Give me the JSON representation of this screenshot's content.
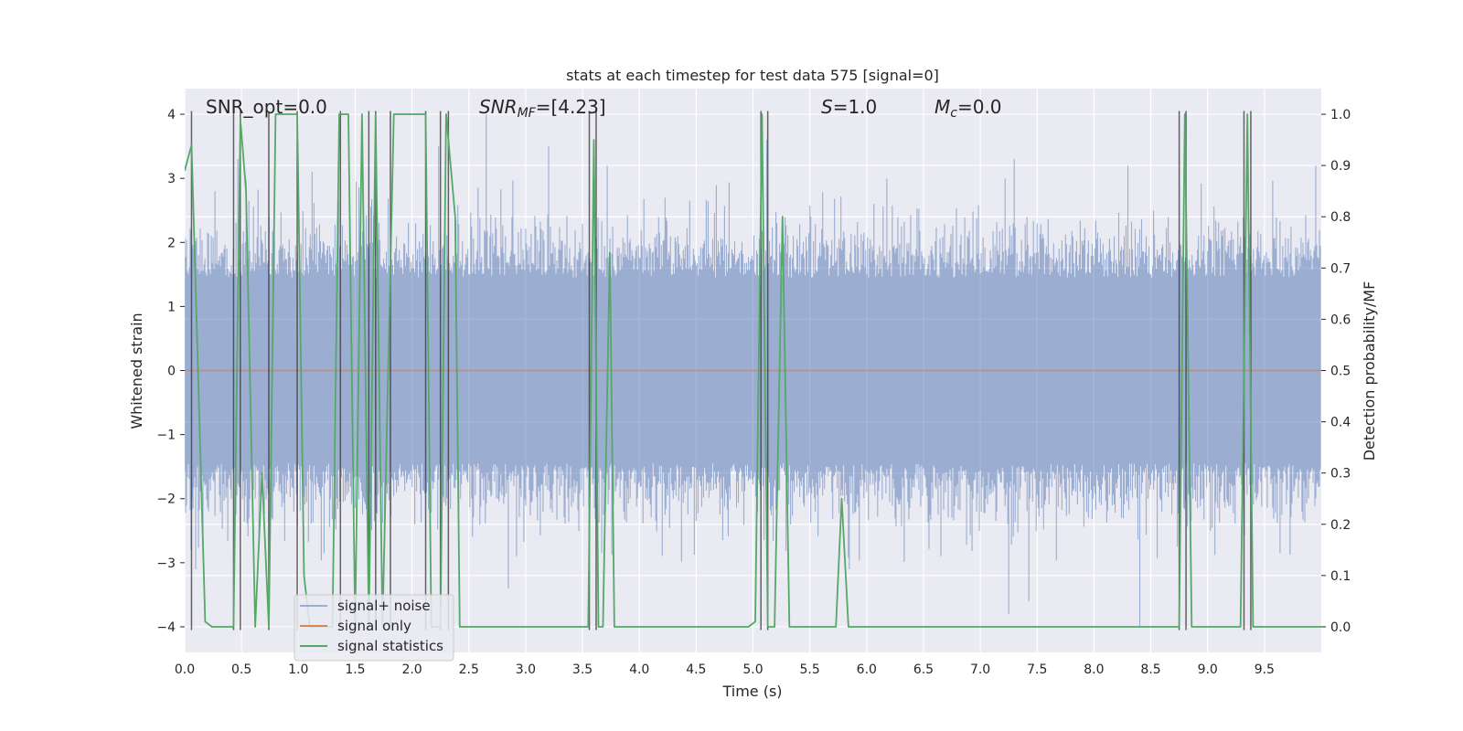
{
  "chart_data": {
    "type": "line",
    "title": "stats at each timestep for test data 575 [signal=0]",
    "xlabel": "Time (s)",
    "ylabel_left": "Whitened strain",
    "ylabel_right": "Detection probability/MF",
    "xlim": [
      0,
      10
    ],
    "ylim_left": [
      -4.4,
      4.4
    ],
    "ylim_right": [
      -0.05,
      1.05
    ],
    "x_ticks": [
      "0.0",
      "0.5",
      "1.0",
      "1.5",
      "2.0",
      "2.5",
      "3.0",
      "3.5",
      "4.0",
      "4.5",
      "5.0",
      "5.5",
      "6.0",
      "6.5",
      "7.0",
      "7.5",
      "8.0",
      "8.5",
      "9.0",
      "9.5"
    ],
    "y_left_ticks": [
      "4",
      "3",
      "2",
      "1",
      "0",
      "−1",
      "−2",
      "−3",
      "−4"
    ],
    "y_right_ticks": [
      "1.0",
      "0.9",
      "0.8",
      "0.7",
      "0.6",
      "0.5",
      "0.4",
      "0.3",
      "0.2",
      "0.1",
      "0.0"
    ],
    "grid": true,
    "annotations": {
      "snr_opt": "SNR_opt=0.0",
      "snr_mf_sym": "SNR",
      "snr_mf_sub": "MF",
      "snr_mf_val": "=[4.23]",
      "s_sym": "S",
      "s_val": "=1.0",
      "mc_sym": "M",
      "mc_sub": "c",
      "mc_val": "=0.0"
    },
    "legend": {
      "position": "lower-left",
      "entries": [
        "signal+ noise",
        "signal only",
        "signal statistics"
      ]
    },
    "series": [
      {
        "name": "signal+ noise",
        "color": "#4c72b0",
        "axis": "left",
        "style": "dense noise around 0, typical |strain| within 1.6, peaks up to about ±4",
        "peaks": [
          {
            "x": 0.27,
            "y": 2.8
          },
          {
            "x": 0.47,
            "y": 3.3
          },
          {
            "x": 1.12,
            "y": 3.1
          },
          {
            "x": 2.23,
            "y": 3.5
          },
          {
            "x": 2.65,
            "y": 4.0
          },
          {
            "x": 3.2,
            "y": 3.5
          },
          {
            "x": 3.72,
            "y": 3.2
          },
          {
            "x": 5.12,
            "y": 3.6
          },
          {
            "x": 7.3,
            "y": 3.3
          },
          {
            "x": 8.3,
            "y": 3.2
          },
          {
            "x": 9.95,
            "y": 3.2
          },
          {
            "x": 0.1,
            "y": -3.1
          },
          {
            "x": 2.85,
            "y": -3.4
          },
          {
            "x": 5.85,
            "y": -3.1
          },
          {
            "x": 7.25,
            "y": -3.8
          },
          {
            "x": 7.43,
            "y": -3.6
          },
          {
            "x": 8.4,
            "y": -4.0
          }
        ]
      },
      {
        "name": "signal only",
        "color": "#dd8452",
        "axis": "left",
        "x": [
          0,
          10
        ],
        "y": [
          0,
          0
        ]
      },
      {
        "name": "signal statistics",
        "color": "#55a868",
        "axis": "right",
        "x": [
          0,
          0.06,
          0.18,
          0.24,
          0.43,
          0.49,
          0.54,
          0.62,
          0.68,
          0.74,
          0.8,
          0.99,
          1.05,
          1.1,
          1.3,
          1.36,
          1.44,
          1.5,
          1.56,
          1.62,
          1.68,
          1.74,
          1.84,
          1.88,
          2.12,
          2.17,
          2.25,
          2.3,
          2.38,
          2.42,
          2.48,
          3.55,
          3.6,
          3.64,
          3.68,
          3.74,
          3.78,
          3.83,
          3.88,
          4.96,
          5.02,
          5.08,
          5.13,
          5.19,
          5.26,
          5.32,
          5.38,
          5.43,
          5.73,
          5.78,
          5.84,
          8.75,
          8.8,
          8.86,
          9.29,
          9.35,
          9.4,
          9.45,
          10.0
        ],
        "y": [
          0.89,
          0.94,
          0.01,
          0.0,
          0.0,
          0.99,
          0.85,
          0.0,
          0.3,
          0.0,
          1.0,
          1.0,
          0.1,
          0.0,
          0.0,
          1.0,
          1.0,
          0.0,
          1.0,
          0.0,
          1.0,
          0.0,
          1.0,
          1.0,
          1.0,
          0.0,
          0.0,
          1.0,
          0.8,
          0.0,
          0.0,
          0.0,
          0.95,
          0.0,
          0.0,
          0.73,
          0.0,
          0.0,
          0.0,
          0.0,
          0.01,
          1.0,
          0.0,
          0.0,
          0.8,
          0.0,
          0.0,
          0.0,
          0.0,
          0.25,
          0.0,
          0.0,
          1.0,
          0.0,
          0.0,
          1.0,
          0.0,
          0.0,
          0.0
        ]
      }
    ],
    "event_markers": {
      "name": "vertical event lines",
      "color": "#333333",
      "x": [
        0.06,
        0.43,
        0.49,
        0.74,
        0.99,
        1.37,
        1.62,
        1.68,
        1.81,
        2.12,
        2.25,
        2.32,
        3.56,
        3.62,
        5.07,
        5.13,
        8.75,
        8.81,
        9.32,
        9.38
      ]
    }
  }
}
